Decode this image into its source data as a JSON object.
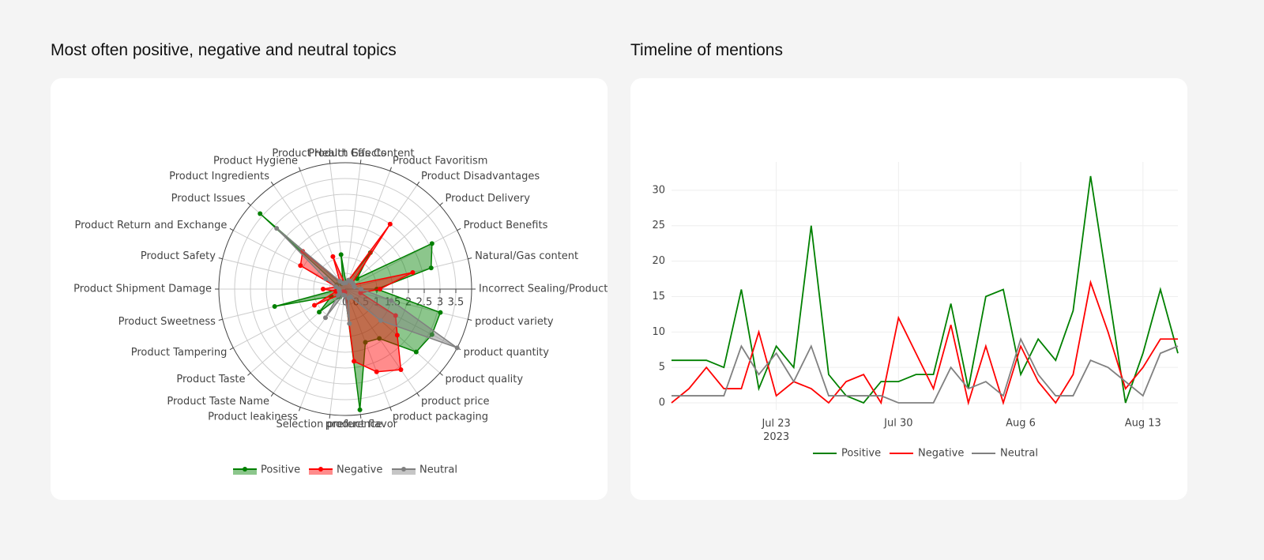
{
  "chart_data": [
    {
      "type": "radar",
      "title": "Most often positive, negative and neutral topics",
      "categories": [
        "Incorrect Sealing/Product",
        "Natural/Gas content",
        "Product Benefits",
        "Product Delivery",
        "Product Disadvantages",
        "Product Favoritism",
        "Product Gas Content",
        "Product Health Effects",
        "Product Hygiene",
        "Product Ingredients",
        "Product Issues",
        "Product Return and Exchange",
        "Product Safety",
        "Product Shipment Damage",
        "Product Sweetness",
        "Product Tampering",
        "Product Taste",
        "Product Taste Name",
        "Product leakiness",
        "Selection preference",
        "product flavor",
        "product packaging",
        "product price",
        "product quality",
        "product quantity",
        "product variety"
      ],
      "series": [
        {
          "name": "Positive",
          "color": "#008000",
          "values": [
            1,
            2.8,
            3.1,
            0.5,
            1.4,
            0.3,
            0.2,
            1.1,
            0.2,
            0.2,
            3.6,
            0.3,
            0.3,
            0.2,
            2.3,
            0.5,
            1.1,
            0.3,
            0.1,
            0.1,
            3.85,
            1.8,
            1.9,
            3.0,
            3.1,
            3.1
          ]
        },
        {
          "name": "Negative",
          "color": "#ff0000",
          "values": [
            1.1,
            2.2,
            0.3,
            0.3,
            2.5,
            0.3,
            0.2,
            0.2,
            1.1,
            0.3,
            1.8,
            1.6,
            0.3,
            0.7,
            0.3,
            1.1,
            0.3,
            0.1,
            0.1,
            0.1,
            2.3,
            2.8,
            3.1,
            2.2,
            1.8,
            0.5
          ]
        },
        {
          "name": "Neutral",
          "color": "#808080",
          "values": [
            0.5,
            0.3,
            0.3,
            0.3,
            0.3,
            0.3,
            0.2,
            0.2,
            0.2,
            0.3,
            2.9,
            0.7,
            0.3,
            0.2,
            0.2,
            0.2,
            0.3,
            1.1,
            0.2,
            0.2,
            1.1,
            0.3,
            0.3,
            1.5,
            4,
            1.5
          ]
        }
      ],
      "rlim": [
        0,
        4
      ],
      "rticks": [
        0,
        0.5,
        1,
        1.5,
        2,
        2.5,
        3,
        3.5
      ]
    },
    {
      "type": "line",
      "title": "Timeline of mentions",
      "x": [
        "2023-07-17",
        "2023-07-18",
        "2023-07-19",
        "2023-07-20",
        "2023-07-21",
        "2023-07-22",
        "2023-07-23",
        "2023-07-24",
        "2023-07-25",
        "2023-07-26",
        "2023-07-27",
        "2023-07-28",
        "2023-07-29",
        "2023-07-30",
        "2023-07-31",
        "2023-08-01",
        "2023-08-02",
        "2023-08-03",
        "2023-08-04",
        "2023-08-05",
        "2023-08-06",
        "2023-08-07",
        "2023-08-08",
        "2023-08-09",
        "2023-08-10",
        "2023-08-11",
        "2023-08-12",
        "2023-08-13",
        "2023-08-14",
        "2023-08-15"
      ],
      "series": [
        {
          "name": "Positive",
          "color": "#008000",
          "values": [
            6,
            6,
            6,
            5,
            16,
            2,
            8,
            5,
            25,
            4,
            1,
            0,
            3,
            3,
            4,
            4,
            14,
            2,
            15,
            16,
            4,
            9,
            6,
            13,
            32,
            16,
            0,
            7,
            16,
            7
          ]
        },
        {
          "name": "Negative",
          "color": "#ff0000",
          "values": [
            0,
            2,
            5,
            2,
            2,
            10,
            1,
            3,
            2,
            0,
            3,
            4,
            0,
            12,
            7,
            2,
            11,
            0,
            8,
            0,
            8,
            3,
            0,
            4,
            17,
            10,
            2,
            5,
            9,
            9
          ]
        },
        {
          "name": "Neutral",
          "color": "#808080",
          "values": [
            1,
            1,
            1,
            1,
            8,
            4,
            7,
            3,
            8,
            1,
            1,
            1,
            1,
            0,
            0,
            0,
            5,
            2,
            3,
            1,
            9,
            4,
            1,
            1,
            6,
            5,
            3,
            1,
            7,
            8
          ]
        }
      ],
      "xlim": [
        "2023-07-17",
        "2023-08-15"
      ],
      "xticks": [
        {
          "value": "2023-07-23",
          "label": "Jul 23\n2023"
        },
        {
          "value": "2023-07-30",
          "label": "Jul 30"
        },
        {
          "value": "2023-08-06",
          "label": "Aug 6"
        },
        {
          "value": "2023-08-13",
          "label": "Aug 13"
        }
      ],
      "ylim": [
        -1,
        34
      ],
      "yticks": [
        0,
        5,
        10,
        15,
        20,
        25,
        30
      ],
      "grid": true
    }
  ]
}
